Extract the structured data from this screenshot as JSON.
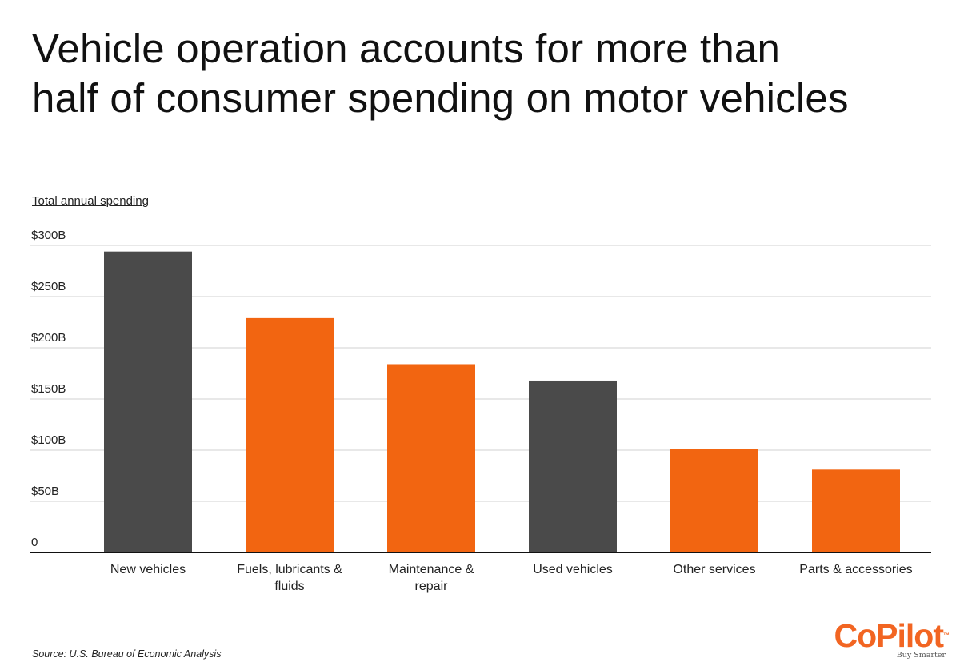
{
  "title_lines": [
    "Vehicle operation accounts for more than",
    "half of consumer spending on motor vehicles"
  ],
  "source": "Source:  U.S. Bureau of Economic Analysis",
  "logo": {
    "name": "CoPilot",
    "tm": "™",
    "tagline": "Buy Smarter"
  },
  "colors": {
    "vehicle": "#4a4a4a",
    "operation": "#f26511",
    "grid": "#d0d0d0",
    "axis": "#111111"
  },
  "chart_data": {
    "type": "bar",
    "title": "Vehicle operation accounts for more than half of consumer spending on motor vehicles",
    "ylabel": "Total annual spending",
    "xlabel": "",
    "ylim": [
      0,
      300
    ],
    "yticks": [
      {
        "value": 0,
        "label": "0"
      },
      {
        "value": 50,
        "label": "$50B"
      },
      {
        "value": 100,
        "label": "$100B"
      },
      {
        "value": 150,
        "label": "$150B"
      },
      {
        "value": 200,
        "label": "$200B"
      },
      {
        "value": 250,
        "label": "$250B"
      },
      {
        "value": 300,
        "label": "$300B"
      }
    ],
    "grid": true,
    "categories": [
      [
        "New vehicles"
      ],
      [
        "Fuels, lubricants &",
        "fluids"
      ],
      [
        "Maintenance &",
        "repair"
      ],
      [
        "Used vehicles"
      ],
      [
        "Other services"
      ],
      [
        "Parts & accessories"
      ]
    ],
    "values": [
      294,
      229,
      184,
      168,
      101,
      81
    ],
    "bar_colors": [
      "#4a4a4a",
      "#f26511",
      "#f26511",
      "#4a4a4a",
      "#f26511",
      "#f26511"
    ]
  }
}
